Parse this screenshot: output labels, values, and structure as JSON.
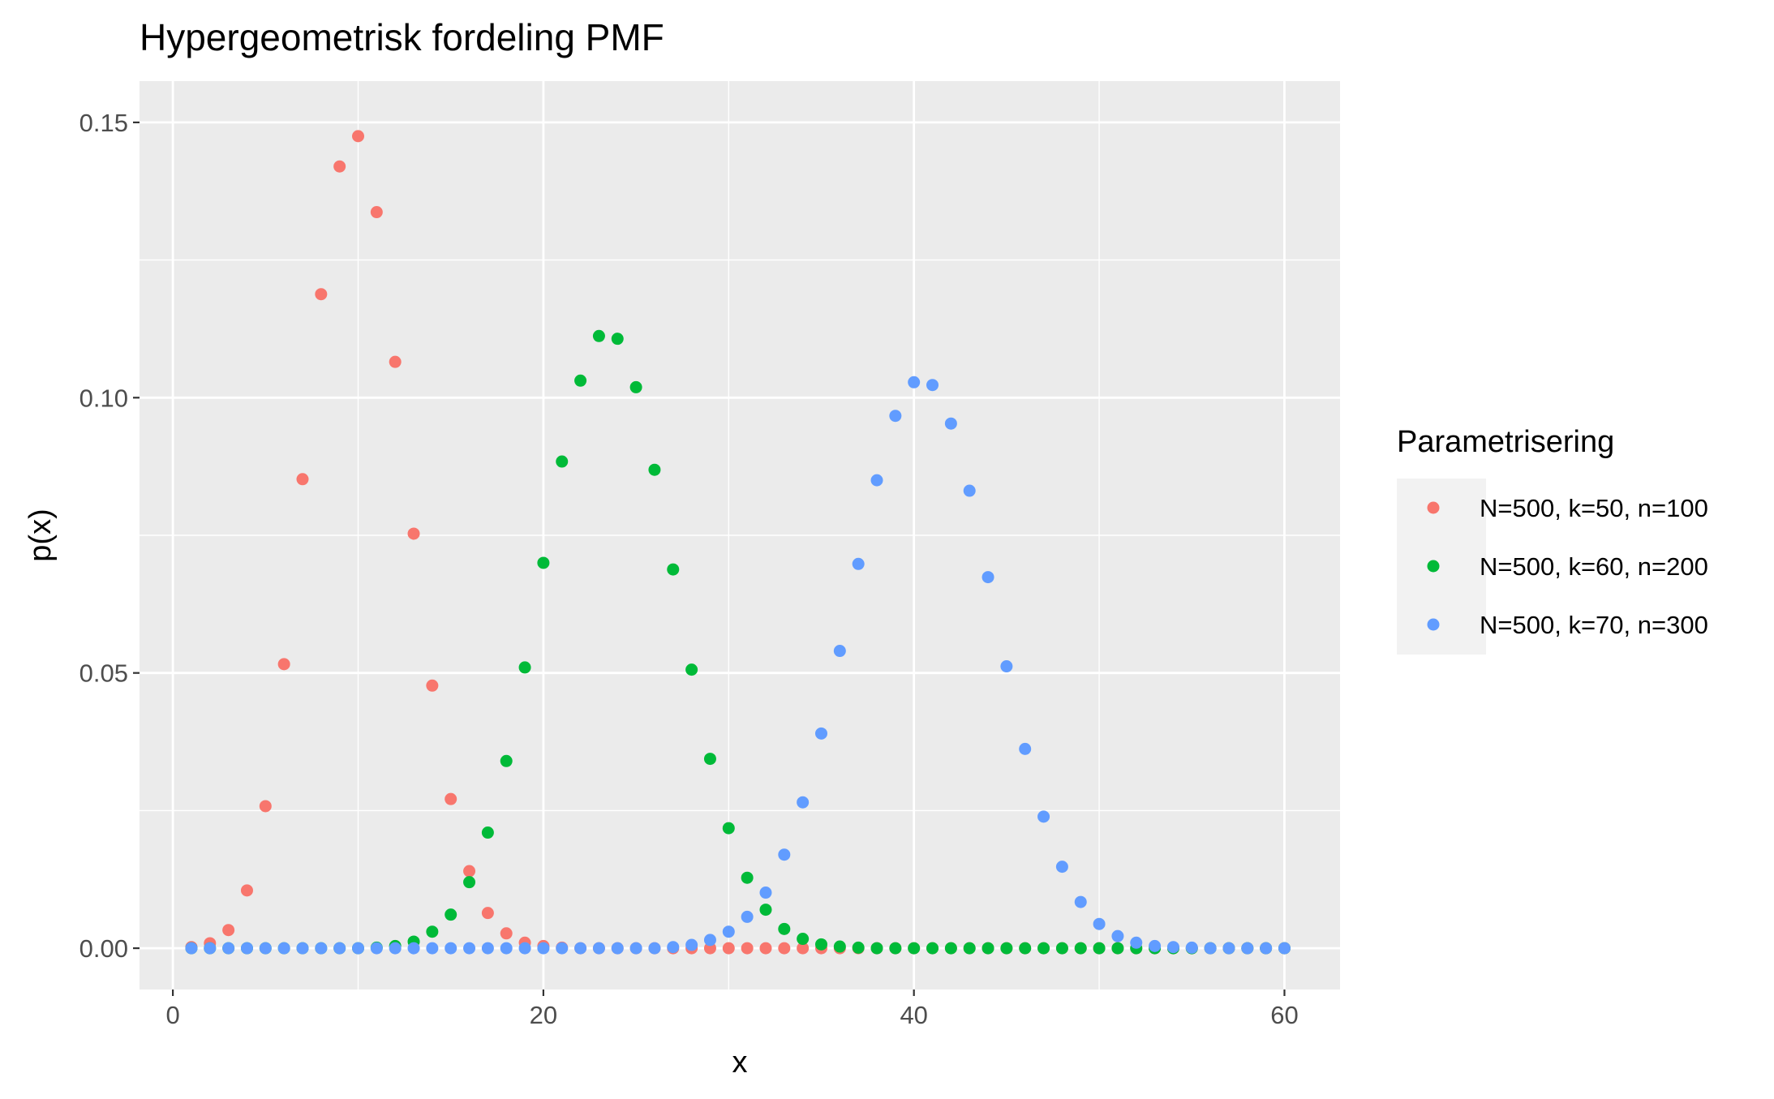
{
  "chart_data": {
    "type": "scatter",
    "title": "Hypergeometrisk fordeling PMF",
    "xlabel": "x",
    "ylabel": "p(x)",
    "xlim": [
      -1.8,
      63
    ],
    "ylim": [
      -0.0075,
      0.1575
    ],
    "x_ticks": [
      0,
      20,
      40,
      60
    ],
    "x_tick_labels": [
      "0",
      "20",
      "40",
      "60"
    ],
    "y_ticks": [
      0,
      0.05,
      0.1,
      0.15
    ],
    "y_tick_labels": [
      "0.00",
      "0.05",
      "0.10",
      "0.15"
    ],
    "grid": true,
    "legend": {
      "title": "Parametrisering",
      "position": "right"
    },
    "x": [
      1,
      2,
      3,
      4,
      5,
      6,
      7,
      8,
      9,
      10,
      11,
      12,
      13,
      14,
      15,
      16,
      17,
      18,
      19,
      20,
      21,
      22,
      23,
      24,
      25,
      26,
      27,
      28,
      29,
      30,
      31,
      32,
      33,
      34,
      35,
      36,
      37,
      38,
      39,
      40,
      41,
      42,
      43,
      44,
      45,
      46,
      47,
      48,
      49,
      50,
      51,
      52,
      53,
      54,
      55,
      56,
      57,
      58,
      59,
      60
    ],
    "series": [
      {
        "name": "N=500, k=50, n=100",
        "color": "#F8766D",
        "values": [
          0.0002,
          0.0009,
          0.0033,
          0.0105,
          0.0258,
          0.0516,
          0.0852,
          0.1188,
          0.142,
          0.1475,
          0.1337,
          0.1065,
          0.0753,
          0.0477,
          0.0271,
          0.014,
          0.0064,
          0.0027,
          0.001,
          0.0004,
          0.0001,
          0,
          0,
          0,
          0,
          0,
          0,
          0,
          0,
          0,
          0,
          0,
          0,
          0,
          0,
          0,
          0,
          0,
          0,
          0,
          0,
          0,
          0,
          0,
          0,
          0,
          0,
          0,
          0,
          0,
          0,
          0,
          0,
          0,
          0,
          0,
          0,
          0,
          0,
          0
        ]
      },
      {
        "name": "N=500, k=60, n=200",
        "color": "#00BA38",
        "values": [
          0,
          0,
          0,
          0,
          0,
          0,
          0,
          0,
          0,
          0,
          0.0001,
          0.0004,
          0.0012,
          0.003,
          0.0061,
          0.012,
          0.021,
          0.034,
          0.051,
          0.07,
          0.0884,
          0.1031,
          0.1112,
          0.1107,
          0.1019,
          0.0869,
          0.0688,
          0.0506,
          0.0344,
          0.0218,
          0.0128,
          0.007,
          0.0035,
          0.0017,
          0.0007,
          0.0003,
          0.0001,
          0,
          0,
          0,
          0,
          0,
          0,
          0,
          0,
          0,
          0,
          0,
          0,
          0,
          0,
          0,
          0,
          0,
          0,
          0,
          0,
          0,
          0,
          0
        ]
      },
      {
        "name": "N=500, k=70, n=300",
        "color": "#619CFF",
        "values": [
          0,
          0,
          0,
          0,
          0,
          0,
          0,
          0,
          0,
          0,
          0,
          0,
          0,
          0,
          0,
          0,
          0,
          0,
          0,
          0,
          0,
          0,
          0,
          0,
          0,
          0,
          0.0002,
          0.0006,
          0.0015,
          0.003,
          0.0057,
          0.0101,
          0.017,
          0.0265,
          0.039,
          0.054,
          0.0698,
          0.085,
          0.0967,
          0.1028,
          0.1023,
          0.0953,
          0.0831,
          0.0674,
          0.0512,
          0.0362,
          0.0239,
          0.0148,
          0.0084,
          0.0044,
          0.0022,
          0.001,
          0.0004,
          0.0002,
          0.0001,
          0,
          0,
          0,
          0,
          0
        ]
      }
    ]
  }
}
